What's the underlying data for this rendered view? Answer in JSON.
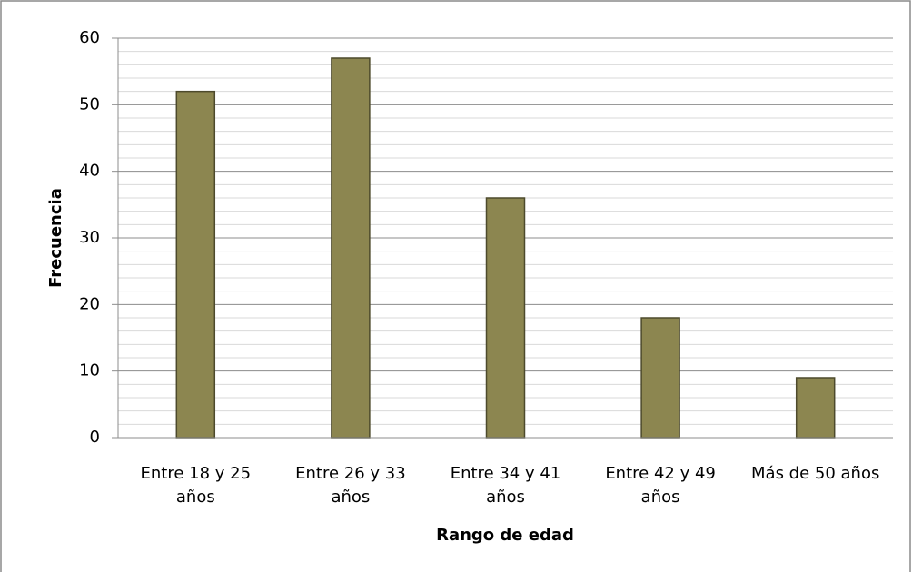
{
  "chart_data": {
    "type": "bar",
    "categories": [
      "Entre 18 y 25 años",
      "Entre 26 y 33 años",
      "Entre 34 y 41 años",
      "Entre 42 y 49 años",
      "Más de 50 años"
    ],
    "values": [
      52,
      57,
      36,
      18,
      9
    ],
    "color": "#8c8650",
    "x_label": "Rango de edad",
    "y_label": "Frecuencia",
    "ylim": [
      0,
      60
    ],
    "yticks": [
      0,
      10,
      20,
      30,
      40,
      50,
      60
    ],
    "minor_yticks": [
      2,
      4,
      6,
      8,
      12,
      14,
      16,
      18,
      22,
      24,
      26,
      28,
      32,
      34,
      36,
      38,
      42,
      44,
      46,
      48,
      52,
      54,
      56,
      58
    ],
    "grid": true
  }
}
